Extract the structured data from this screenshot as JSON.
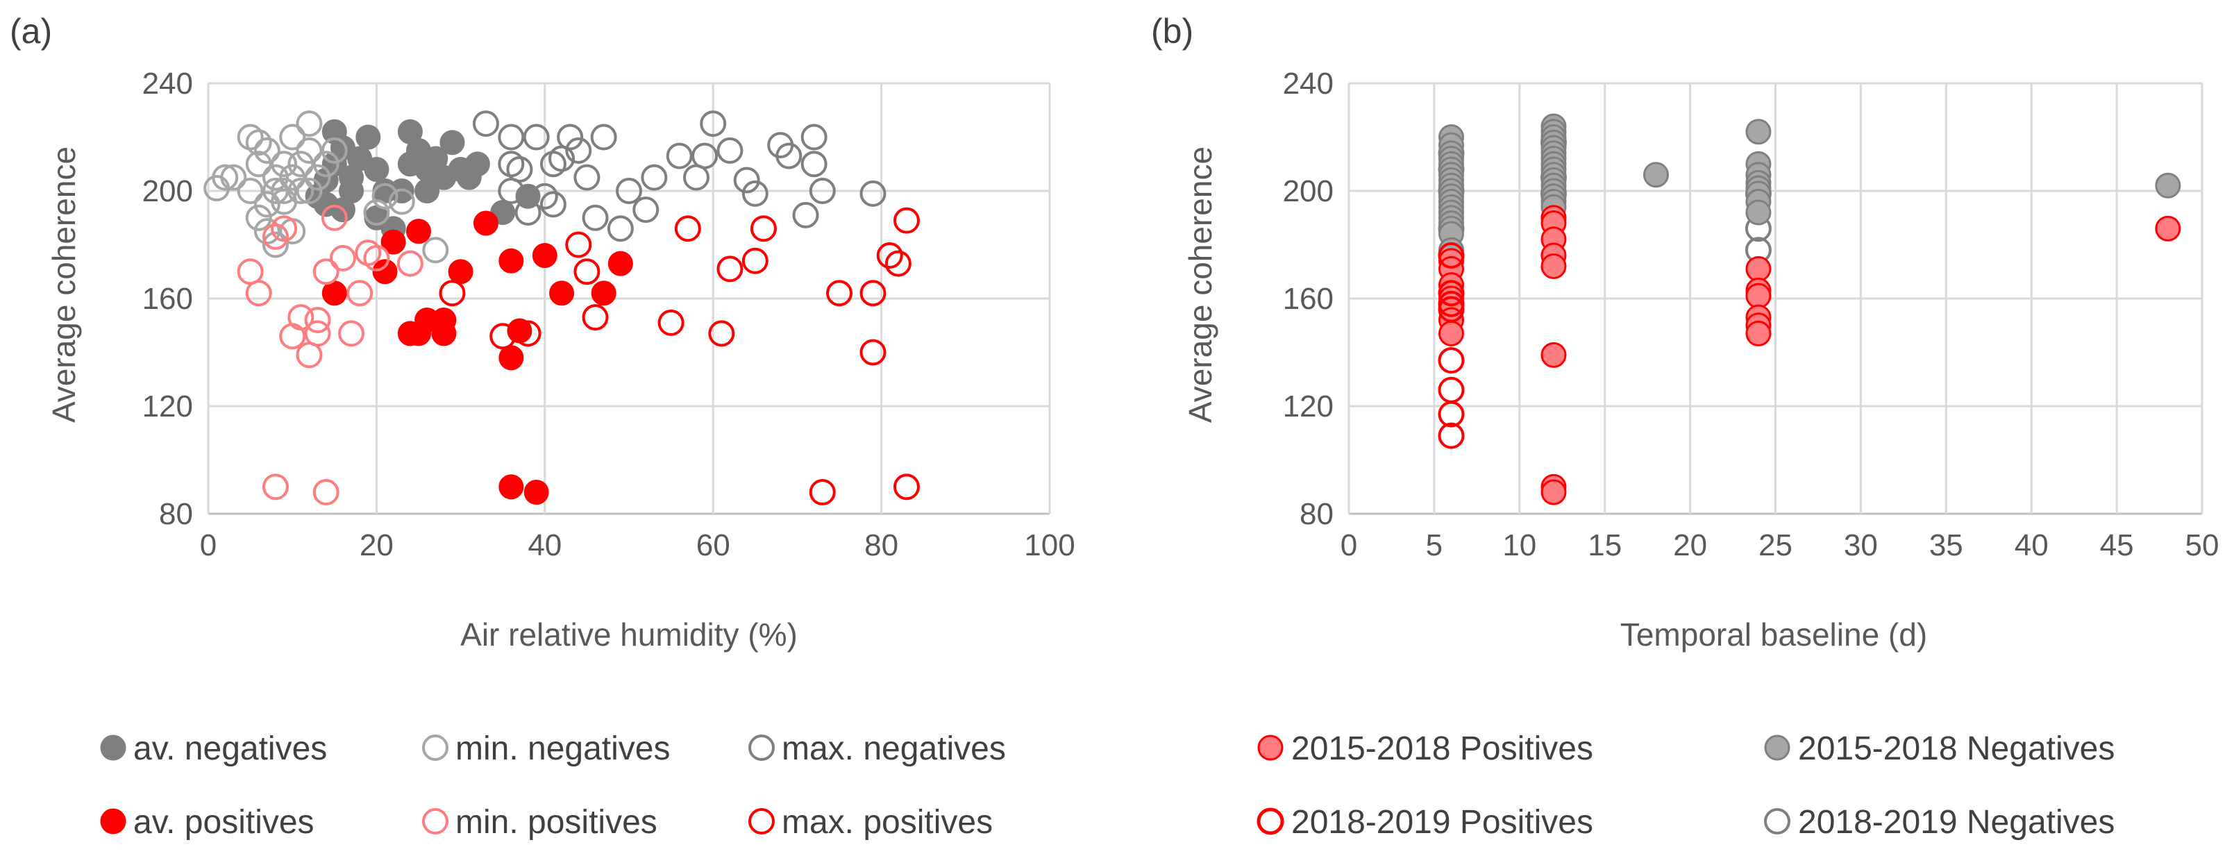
{
  "colors": {
    "dark_gray": "#7f7f7f",
    "light_gray": "#a6a6a6",
    "red": "#ff0000",
    "pink": "#ff7c80",
    "fill_gray": "#a6a6a6",
    "fill_pink": "#ff7c80"
  },
  "chart_data": [
    {
      "panel": "(a)",
      "type": "scatter",
      "xlabel": "Air relative humidity (%)",
      "ylabel": "Average coherence",
      "xlim": [
        0,
        100
      ],
      "ylim": [
        80,
        240
      ],
      "xticks": [
        0,
        20,
        40,
        60,
        80,
        100
      ],
      "yticks": [
        80,
        120,
        160,
        200,
        240
      ],
      "xtick_labels": [
        "0",
        "20",
        "40",
        "60",
        "80",
        "100"
      ],
      "ytick_labels": [
        "80",
        "120",
        "160",
        "200",
        "240"
      ],
      "grid": true,
      "legend": "bottom",
      "series": [
        {
          "name": "av. negatives",
          "marker": "filled",
          "color": "#7f7f7f",
          "points": [
            [
              13,
              198
            ],
            [
              14,
              204
            ],
            [
              15,
              210
            ],
            [
              16,
              216
            ],
            [
              17,
              200
            ],
            [
              18,
              212
            ],
            [
              14,
              195
            ],
            [
              16,
              193
            ],
            [
              19,
              220
            ],
            [
              20,
              208
            ],
            [
              21,
              200
            ],
            [
              22,
              186
            ],
            [
              24,
              210
            ],
            [
              25,
              215
            ],
            [
              26,
              208
            ],
            [
              27,
              212
            ],
            [
              28,
              205
            ],
            [
              29,
              218
            ],
            [
              30,
              208
            ],
            [
              31,
              205
            ],
            [
              32,
              210
            ],
            [
              24,
              222
            ],
            [
              15,
              222
            ],
            [
              17,
              205
            ],
            [
              35,
              192
            ],
            [
              38,
              198
            ],
            [
              23,
              200
            ],
            [
              26,
              200
            ],
            [
              20,
              190
            ]
          ]
        },
        {
          "name": "min. negatives",
          "marker": "open",
          "color": "#a6a6a6",
          "points": [
            [
              1,
              201
            ],
            [
              2,
              205
            ],
            [
              3,
              205
            ],
            [
              5,
              200
            ],
            [
              5,
              220
            ],
            [
              6,
              210
            ],
            [
              6,
              190
            ],
            [
              7,
              195
            ],
            [
              7,
              215
            ],
            [
              8,
              205
            ],
            [
              8,
              200
            ],
            [
              9,
              200
            ],
            [
              9,
              210
            ],
            [
              10,
              205
            ],
            [
              10,
              220
            ],
            [
              11,
              200
            ],
            [
              11,
              210
            ],
            [
              12,
              200
            ],
            [
              12,
              215
            ],
            [
              12,
              225
            ],
            [
              13,
              205
            ],
            [
              14,
              210
            ],
            [
              15,
              215
            ],
            [
              8,
              180
            ],
            [
              7,
              185
            ],
            [
              21,
              198
            ],
            [
              20,
              192
            ],
            [
              23,
              196
            ],
            [
              27,
              178
            ],
            [
              6,
              218
            ],
            [
              9,
              196
            ],
            [
              10,
              185
            ]
          ]
        },
        {
          "name": "max. negatives",
          "marker": "open",
          "color": "#7f7f7f",
          "points": [
            [
              33,
              225
            ],
            [
              36,
              220
            ],
            [
              36,
              210
            ],
            [
              37,
              208
            ],
            [
              38,
              192
            ],
            [
              39,
              220
            ],
            [
              40,
              198
            ],
            [
              41,
              210
            ],
            [
              41,
              195
            ],
            [
              42,
              212
            ],
            [
              43,
              220
            ],
            [
              44,
              215
            ],
            [
              45,
              205
            ],
            [
              46,
              190
            ],
            [
              47,
              220
            ],
            [
              49,
              186
            ],
            [
              50,
              200
            ],
            [
              52,
              193
            ],
            [
              53,
              205
            ],
            [
              56,
              213
            ],
            [
              58,
              205
            ],
            [
              59,
              213
            ],
            [
              60,
              225
            ],
            [
              62,
              215
            ],
            [
              64,
              204
            ],
            [
              65,
              199
            ],
            [
              68,
              217
            ],
            [
              69,
              213
            ],
            [
              71,
              191
            ],
            [
              72,
              220
            ],
            [
              73,
              200
            ],
            [
              72,
              210
            ],
            [
              79,
              199
            ],
            [
              36,
              200
            ]
          ]
        },
        {
          "name": "av. positives",
          "marker": "filled",
          "color": "#ff0000",
          "points": [
            [
              15,
              162
            ],
            [
              21,
              170
            ],
            [
              22,
              181
            ],
            [
              24,
              147
            ],
            [
              25,
              147
            ],
            [
              25,
              185
            ],
            [
              26,
              152
            ],
            [
              28,
              147
            ],
            [
              28,
              152
            ],
            [
              30,
              170
            ],
            [
              33,
              188
            ],
            [
              36,
              138
            ],
            [
              36,
              174
            ],
            [
              36,
              90
            ],
            [
              37,
              148
            ],
            [
              39,
              88
            ],
            [
              40,
              176
            ],
            [
              42,
              162
            ],
            [
              47,
              162
            ],
            [
              49,
              173
            ]
          ]
        },
        {
          "name": "min. positives",
          "marker": "open",
          "color": "#ff7c80",
          "points": [
            [
              5,
              170
            ],
            [
              6,
              162
            ],
            [
              8,
              90
            ],
            [
              8,
              183
            ],
            [
              9,
              186
            ],
            [
              10,
              146
            ],
            [
              11,
              153
            ],
            [
              12,
              139
            ],
            [
              13,
              147
            ],
            [
              13,
              152
            ],
            [
              14,
              88
            ],
            [
              14,
              170
            ],
            [
              15,
              190
            ],
            [
              16,
              175
            ],
            [
              17,
              147
            ],
            [
              18,
              162
            ],
            [
              19,
              177
            ],
            [
              20,
              175
            ],
            [
              24,
              173
            ]
          ]
        },
        {
          "name": "max. positives",
          "marker": "open",
          "color": "#ff0000",
          "points": [
            [
              29,
              162
            ],
            [
              35,
              146
            ],
            [
              38,
              147
            ],
            [
              44,
              180
            ],
            [
              45,
              170
            ],
            [
              46,
              153
            ],
            [
              55,
              151
            ],
            [
              57,
              186
            ],
            [
              61,
              147
            ],
            [
              62,
              171
            ],
            [
              65,
              174
            ],
            [
              66,
              186
            ],
            [
              73,
              88
            ],
            [
              75,
              162
            ],
            [
              79,
              140
            ],
            [
              79,
              162
            ],
            [
              81,
              176
            ],
            [
              82,
              173
            ],
            [
              83,
              189
            ],
            [
              83,
              90
            ]
          ]
        }
      ]
    },
    {
      "panel": "(b)",
      "type": "scatter",
      "xlabel": "Temporal baseline (d)",
      "ylabel": "Average coherence",
      "xlim": [
        0,
        50
      ],
      "ylim": [
        80,
        240
      ],
      "xticks": [
        0,
        5,
        10,
        15,
        20,
        25,
        30,
        35,
        40,
        45,
        50
      ],
      "yticks": [
        80,
        120,
        160,
        200,
        240
      ],
      "xtick_labels": [
        "0",
        "5",
        "10",
        "15",
        "20",
        "25",
        "30",
        "35",
        "40",
        "45",
        "50"
      ],
      "ytick_labels": [
        "80",
        "120",
        "160",
        "200",
        "240"
      ],
      "grid": true,
      "legend": "bottom",
      "series": [
        {
          "name": "2018-2019 Negatives",
          "marker": "open",
          "color": "#7f7f7f",
          "points": [
            [
              6,
              200
            ],
            [
              6,
              208
            ],
            [
              6,
              214
            ],
            [
              6,
              186
            ],
            [
              12,
              205
            ],
            [
              12,
              218
            ],
            [
              12,
              199
            ],
            [
              24,
              186
            ],
            [
              24,
              178
            ],
            [
              24,
              199
            ]
          ]
        },
        {
          "name": "2015-2018 Negatives",
          "marker": "filled",
          "color": "#a6a6a6",
          "points": [
            [
              6,
              220
            ],
            [
              6,
              217
            ],
            [
              6,
              214
            ],
            [
              6,
              212
            ],
            [
              6,
              210
            ],
            [
              6,
              208
            ],
            [
              6,
              206
            ],
            [
              6,
              204
            ],
            [
              6,
              202
            ],
            [
              6,
              200
            ],
            [
              6,
              198
            ],
            [
              6,
              196
            ],
            [
              6,
              194
            ],
            [
              6,
              192
            ],
            [
              6,
              190
            ],
            [
              6,
              188
            ],
            [
              6,
              186
            ],
            [
              6,
              184
            ],
            [
              6,
              178
            ],
            [
              6,
              176
            ],
            [
              12,
              224
            ],
            [
              12,
              222
            ],
            [
              12,
              220
            ],
            [
              12,
              218
            ],
            [
              12,
              216
            ],
            [
              12,
              214
            ],
            [
              12,
              212
            ],
            [
              12,
              210
            ],
            [
              12,
              208
            ],
            [
              12,
              206
            ],
            [
              12,
              204
            ],
            [
              12,
              202
            ],
            [
              12,
              200
            ],
            [
              12,
              198
            ],
            [
              12,
              196
            ],
            [
              12,
              194
            ],
            [
              12,
              190
            ],
            [
              18,
              206
            ],
            [
              24,
              222
            ],
            [
              24,
              210
            ],
            [
              24,
              206
            ],
            [
              24,
              203
            ],
            [
              24,
              201
            ],
            [
              24,
              199
            ],
            [
              24,
              196
            ],
            [
              24,
              192
            ],
            [
              48,
              202
            ]
          ]
        },
        {
          "name": "2015-2018 Positives",
          "marker": "filled",
          "color": "#ff7c80",
          "points": [
            [
              6,
              174
            ],
            [
              6,
              171
            ],
            [
              6,
              165
            ],
            [
              6,
              162
            ],
            [
              6,
              160
            ],
            [
              6,
              158
            ],
            [
              6,
              156
            ],
            [
              6,
              152
            ],
            [
              6,
              147
            ],
            [
              12,
              190
            ],
            [
              12,
              188
            ],
            [
              12,
              182
            ],
            [
              12,
              176
            ],
            [
              12,
              172
            ],
            [
              12,
              139
            ],
            [
              12,
              90
            ],
            [
              12,
              88
            ],
            [
              24,
              171
            ],
            [
              24,
              163
            ],
            [
              24,
              161
            ],
            [
              24,
              153
            ],
            [
              24,
              150
            ],
            [
              24,
              147
            ],
            [
              48,
              186
            ]
          ]
        },
        {
          "name": "2018-2019 Positives",
          "marker": "open",
          "color": "#ff0000",
          "points": [
            [
              6,
              176
            ],
            [
              6,
              162
            ],
            [
              6,
              158
            ],
            [
              6,
              156
            ],
            [
              6,
              137
            ],
            [
              6,
              126
            ],
            [
              6,
              117
            ],
            [
              6,
              109
            ]
          ]
        }
      ]
    }
  ],
  "legend_a": {
    "row1": [
      "av. negatives",
      "min. negatives",
      "max. negatives"
    ],
    "row2": [
      "av. positives",
      "min. positives",
      "max. positives"
    ]
  },
  "legend_b": {
    "row1": [
      "2015-2018 Positives",
      "2015-2018 Negatives"
    ],
    "row2": [
      "2018-2019 Positives",
      "2018-2019 Negatives"
    ]
  }
}
